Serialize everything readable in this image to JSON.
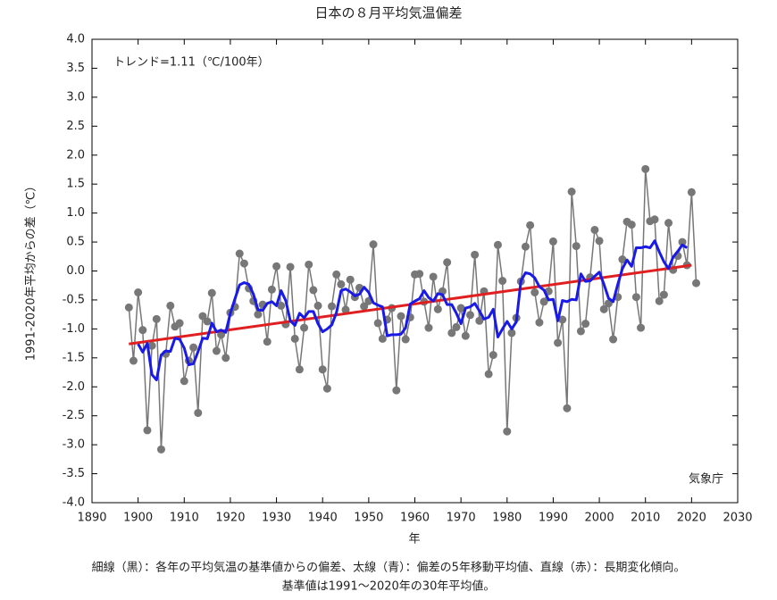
{
  "chart_data": {
    "type": "line",
    "title": "日本の８月平均気温偏差",
    "xlabel": "年",
    "ylabel": "1991-2020年平均からの差（℃）",
    "annotations": [
      "トレンド=1.11（℃/100年）",
      "気象庁"
    ],
    "caption": [
      "細線（黒）：各年の平均気温の基準値からの偏差、太線（青）：偏差の5年移動平均値、直線（赤）：長期変化傾向。",
      "基準値は1991〜2020年の30年平均値。"
    ],
    "x": [
      1898,
      1899,
      1900,
      1901,
      1902,
      1903,
      1904,
      1905,
      1906,
      1907,
      1908,
      1909,
      1910,
      1911,
      1912,
      1913,
      1914,
      1915,
      1916,
      1917,
      1918,
      1919,
      1920,
      1921,
      1922,
      1923,
      1924,
      1925,
      1926,
      1927,
      1928,
      1929,
      1930,
      1931,
      1932,
      1933,
      1934,
      1935,
      1936,
      1937,
      1938,
      1939,
      1940,
      1941,
      1942,
      1943,
      1944,
      1945,
      1946,
      1947,
      1948,
      1949,
      1950,
      1951,
      1952,
      1953,
      1954,
      1955,
      1956,
      1957,
      1958,
      1959,
      1960,
      1961,
      1962,
      1963,
      1964,
      1965,
      1966,
      1967,
      1968,
      1969,
      1970,
      1971,
      1972,
      1973,
      1974,
      1975,
      1976,
      1977,
      1978,
      1979,
      1980,
      1981,
      1982,
      1983,
      1984,
      1985,
      1986,
      1987,
      1988,
      1989,
      1990,
      1991,
      1992,
      1993,
      1994,
      1995,
      1996,
      1997,
      1998,
      1999,
      2000,
      2001,
      2002,
      2003,
      2004,
      2005,
      2006,
      2007,
      2008,
      2009,
      2010,
      2011,
      2012,
      2013,
      2014,
      2015,
      2016,
      2017,
      2018,
      2019,
      2020,
      2021
    ],
    "series": [
      {
        "color": "#777777",
        "markers": true,
        "width": 1.5,
        "values": [
          -0.63,
          -1.55,
          -0.37,
          -1.02,
          -2.75,
          -1.29,
          -0.83,
          -3.08,
          -1.43,
          -0.6,
          -0.96,
          -0.9,
          -1.9,
          -1.55,
          -1.32,
          -2.45,
          -0.78,
          -0.87,
          -0.38,
          -1.38,
          -1.1,
          -1.5,
          -0.72,
          -0.62,
          0.3,
          0.13,
          -0.3,
          -0.52,
          -0.75,
          -0.58,
          -1.22,
          -0.32,
          0.08,
          -0.6,
          -0.92,
          0.07,
          -1.17,
          -1.7,
          -0.98,
          0.11,
          -0.33,
          -0.6,
          -1.7,
          -2.03,
          -0.61,
          -0.06,
          -0.23,
          -0.67,
          -0.15,
          -0.45,
          -0.29,
          -0.61,
          -0.52,
          0.46,
          -0.9,
          -1.17,
          -0.84,
          -0.64,
          -2.06,
          -0.78,
          -1.18,
          -0.8,
          -0.06,
          -0.05,
          -0.53,
          -0.98,
          -0.1,
          -0.66,
          -0.35,
          0.15,
          -1.07,
          -0.97,
          -0.64,
          -1.12,
          -0.76,
          0.28,
          -0.86,
          -0.35,
          -1.78,
          -1.45,
          0.45,
          -0.17,
          -2.77,
          -1.07,
          -0.81,
          -0.18,
          0.42,
          0.79,
          -0.37,
          -0.89,
          -0.53,
          -0.35,
          0.51,
          -1.24,
          -0.84,
          -2.37,
          1.37,
          0.43,
          -1.04,
          -0.91,
          -0.11,
          0.71,
          0.52,
          -0.66,
          -0.56,
          -1.18,
          -0.45,
          0.2,
          0.85,
          0.8,
          -0.45,
          -0.98,
          1.76,
          0.86,
          0.89,
          -0.52,
          -0.41,
          0.83,
          0.02,
          0.26,
          0.5,
          0.1,
          1.36,
          -0.21
        ]
      },
      {
        "color": "#e02020",
        "markers": false,
        "width": 3,
        "x": [
          1898,
          2020
        ],
        "values": [
          -1.26,
          0.1
        ]
      },
      {
        "color": "#1a1ae6",
        "markers": false,
        "width": 3,
        "values": [
          null,
          null,
          -1.26,
          -1.4,
          -1.25,
          -1.79,
          -1.88,
          -1.45,
          -1.38,
          -1.39,
          -1.16,
          -1.18,
          -1.33,
          -1.62,
          -1.6,
          -1.39,
          -1.16,
          -1.17,
          -0.9,
          -1.05,
          -1.02,
          -1.06,
          -0.73,
          -0.48,
          -0.24,
          -0.2,
          -0.23,
          -0.4,
          -0.67,
          -0.68,
          -0.56,
          -0.53,
          -0.6,
          -0.34,
          -0.51,
          -0.86,
          -0.94,
          -0.73,
          -0.81,
          -0.7,
          -0.7,
          -0.91,
          -1.05,
          -1.0,
          -0.93,
          -0.72,
          -0.34,
          -0.31,
          -0.36,
          -0.43,
          -0.4,
          -0.28,
          -0.37,
          -0.55,
          -0.59,
          -0.62,
          -1.12,
          -1.1,
          -1.1,
          -1.09,
          -0.98,
          -0.57,
          -0.52,
          -0.48,
          -0.34,
          -0.46,
          -0.52,
          -0.39,
          -0.41,
          -0.58,
          -0.58,
          -0.73,
          -0.91,
          -0.64,
          -0.62,
          -0.56,
          -0.69,
          -0.83,
          -0.8,
          -0.66,
          -1.14,
          -1.0,
          -0.87,
          -1.0,
          -0.88,
          -0.17,
          -0.03,
          -0.05,
          -0.12,
          -0.27,
          -0.33,
          -0.5,
          -0.49,
          -0.86,
          -0.51,
          -0.53,
          -0.49,
          -0.5,
          -0.05,
          -0.18,
          -0.17,
          -0.09,
          -0.02,
          -0.23,
          -0.47,
          -0.53,
          -0.23,
          0.04,
          0.19,
          0.08,
          0.4,
          0.4,
          0.42,
          0.4,
          0.52,
          0.33,
          0.16,
          0.04,
          0.24,
          0.34,
          0.45,
          0.4,
          null,
          null
        ]
      }
    ],
    "xlim": [
      1890,
      2030
    ],
    "ylim": [
      -4,
      4
    ],
    "xticks": [
      1890,
      1900,
      1910,
      1920,
      1930,
      1940,
      1950,
      1960,
      1970,
      1980,
      1990,
      2000,
      2010,
      2020,
      2030
    ],
    "yticks": [
      {
        "value": 4,
        "label": "4.0"
      },
      {
        "value": 3.5,
        "label": "3.5"
      },
      {
        "value": 3,
        "label": "3.0"
      },
      {
        "value": 2.5,
        "label": "2.5"
      },
      {
        "value": 2,
        "label": "2.0"
      },
      {
        "value": 1.5,
        "label": "1.5"
      },
      {
        "value": 1,
        "label": "1.0"
      },
      {
        "value": 0.5,
        "label": "0.5"
      },
      {
        "value": 0,
        "label": "0.0"
      },
      {
        "value": -0.5,
        "label": "-0.5"
      },
      {
        "value": -1,
        "label": "-1.0"
      },
      {
        "value": -1.5,
        "label": "-1.5"
      },
      {
        "value": -2,
        "label": "-2.0"
      },
      {
        "value": -2.5,
        "label": "-2.5"
      },
      {
        "value": -3,
        "label": "-3.0"
      },
      {
        "value": -3.5,
        "label": "-3.5"
      },
      {
        "value": -4,
        "label": "-4.0"
      }
    ],
    "grid": false
  }
}
